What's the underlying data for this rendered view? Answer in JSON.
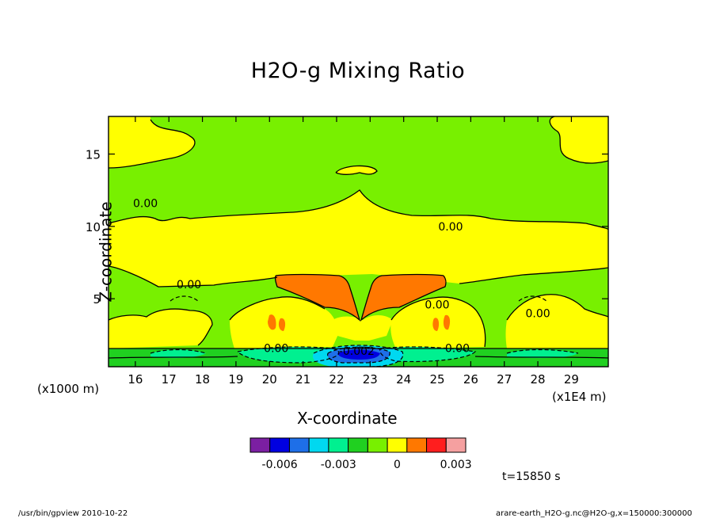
{
  "chart_data": {
    "type": "heatmap",
    "title": "H2O-g Mixing Ratio",
    "xlabel": "X-coordinate",
    "ylabel": "Z-coordinate",
    "x_ticks": [
      "16",
      "17",
      "18",
      "19",
      "20",
      "21",
      "22",
      "23",
      "24",
      "25",
      "26",
      "27",
      "28",
      "29"
    ],
    "x_tick_values": [
      16,
      17,
      18,
      19,
      20,
      21,
      22,
      23,
      24,
      25,
      26,
      27,
      28,
      29
    ],
    "x_scale_note": "(x1E4 m)",
    "xlim": [
      15.2,
      30.1
    ],
    "y_ticks": [
      "5",
      "10",
      "15"
    ],
    "y_tick_values": [
      5,
      10,
      15
    ],
    "y_scale_note": "(x1000 m)",
    "ylim": [
      0.3,
      17.6
    ],
    "contour_labels": [
      {
        "text": "0.00",
        "x": 16.3,
        "z": 11.6
      },
      {
        "text": "0.00",
        "x": 25.4,
        "z": 10.0
      },
      {
        "text": "0.00",
        "x": 17.6,
        "z": 6.0
      },
      {
        "text": "0.00",
        "x": 25.0,
        "z": 4.6
      },
      {
        "text": "0.00",
        "x": 28.0,
        "z": 4.0
      },
      {
        "text": "0.00",
        "x": 20.2,
        "z": 1.6
      },
      {
        "text": "0.00",
        "x": 25.6,
        "z": 1.6
      },
      {
        "text": "-0.002",
        "x": 22.6,
        "z": 1.4
      }
    ],
    "colorbar": {
      "labels": [
        "-0.006",
        "-0.003",
        "0",
        "0.003"
      ],
      "label_values": [
        -0.006,
        -0.003,
        0,
        0.003
      ],
      "min": -0.0075,
      "max": 0.0035,
      "colors": [
        "#7b1fa2",
        "#0000e0",
        "#1e6fe8",
        "#00d8f0",
        "#00f090",
        "#20d020",
        "#78f000",
        "#ffff00",
        "#ff7800",
        "#ff1e1e",
        "#f5a0a0"
      ]
    },
    "time_label": "t=15850 s",
    "grid": false
  },
  "colors": {
    "green": "#78f000",
    "yellow": "#ffff00",
    "orange": "#ff7800",
    "darkgreen": "#20d020",
    "teal": "#00f090",
    "cyan": "#00d8f0",
    "blue": "#1e6fe8",
    "navy": "#0000e0"
  },
  "footer": {
    "left": "/usr/bin/gpview   2010-10-22",
    "right": "arare-earth_H2O-g.nc@H2O-g,x=150000:300000"
  }
}
